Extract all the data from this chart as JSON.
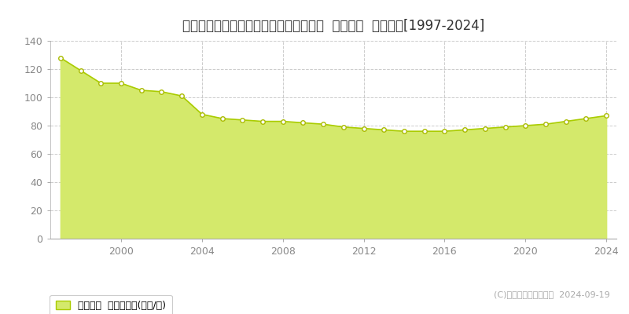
{
  "title": "鹿児島県鹿児島市荒田１丁目３０番１４  基準地価  地価推移[1997-2024]",
  "years": [
    1997,
    1998,
    1999,
    2000,
    2001,
    2002,
    2003,
    2004,
    2005,
    2006,
    2007,
    2008,
    2009,
    2010,
    2011,
    2012,
    2013,
    2014,
    2015,
    2016,
    2017,
    2018,
    2019,
    2020,
    2021,
    2022,
    2023,
    2024
  ],
  "values": [
    128,
    119,
    110,
    110,
    105,
    104,
    101,
    88,
    85,
    84,
    83,
    83,
    82,
    81,
    79,
    78,
    77,
    76,
    76,
    76,
    77,
    78,
    79,
    80,
    81,
    83,
    85,
    87
  ],
  "line_color": "#aacc00",
  "fill_color": "#d4e96b",
  "marker_face": "#ffffff",
  "marker_edge": "#aabb00",
  "bg_color": "#ffffff",
  "plot_bg_color": "#ffffff",
  "grid_color": "#cccccc",
  "ylim": [
    0,
    140
  ],
  "yticks": [
    0,
    20,
    40,
    60,
    80,
    100,
    120,
    140
  ],
  "xticks": [
    2000,
    2004,
    2008,
    2012,
    2016,
    2020,
    2024
  ],
  "legend_label": "基準地価  平均坪単価(万円/坪)",
  "copyright_text": "(C)土地価格ドットコム  2024-09-19",
  "title_fontsize": 12,
  "tick_fontsize": 9,
  "legend_fontsize": 9
}
